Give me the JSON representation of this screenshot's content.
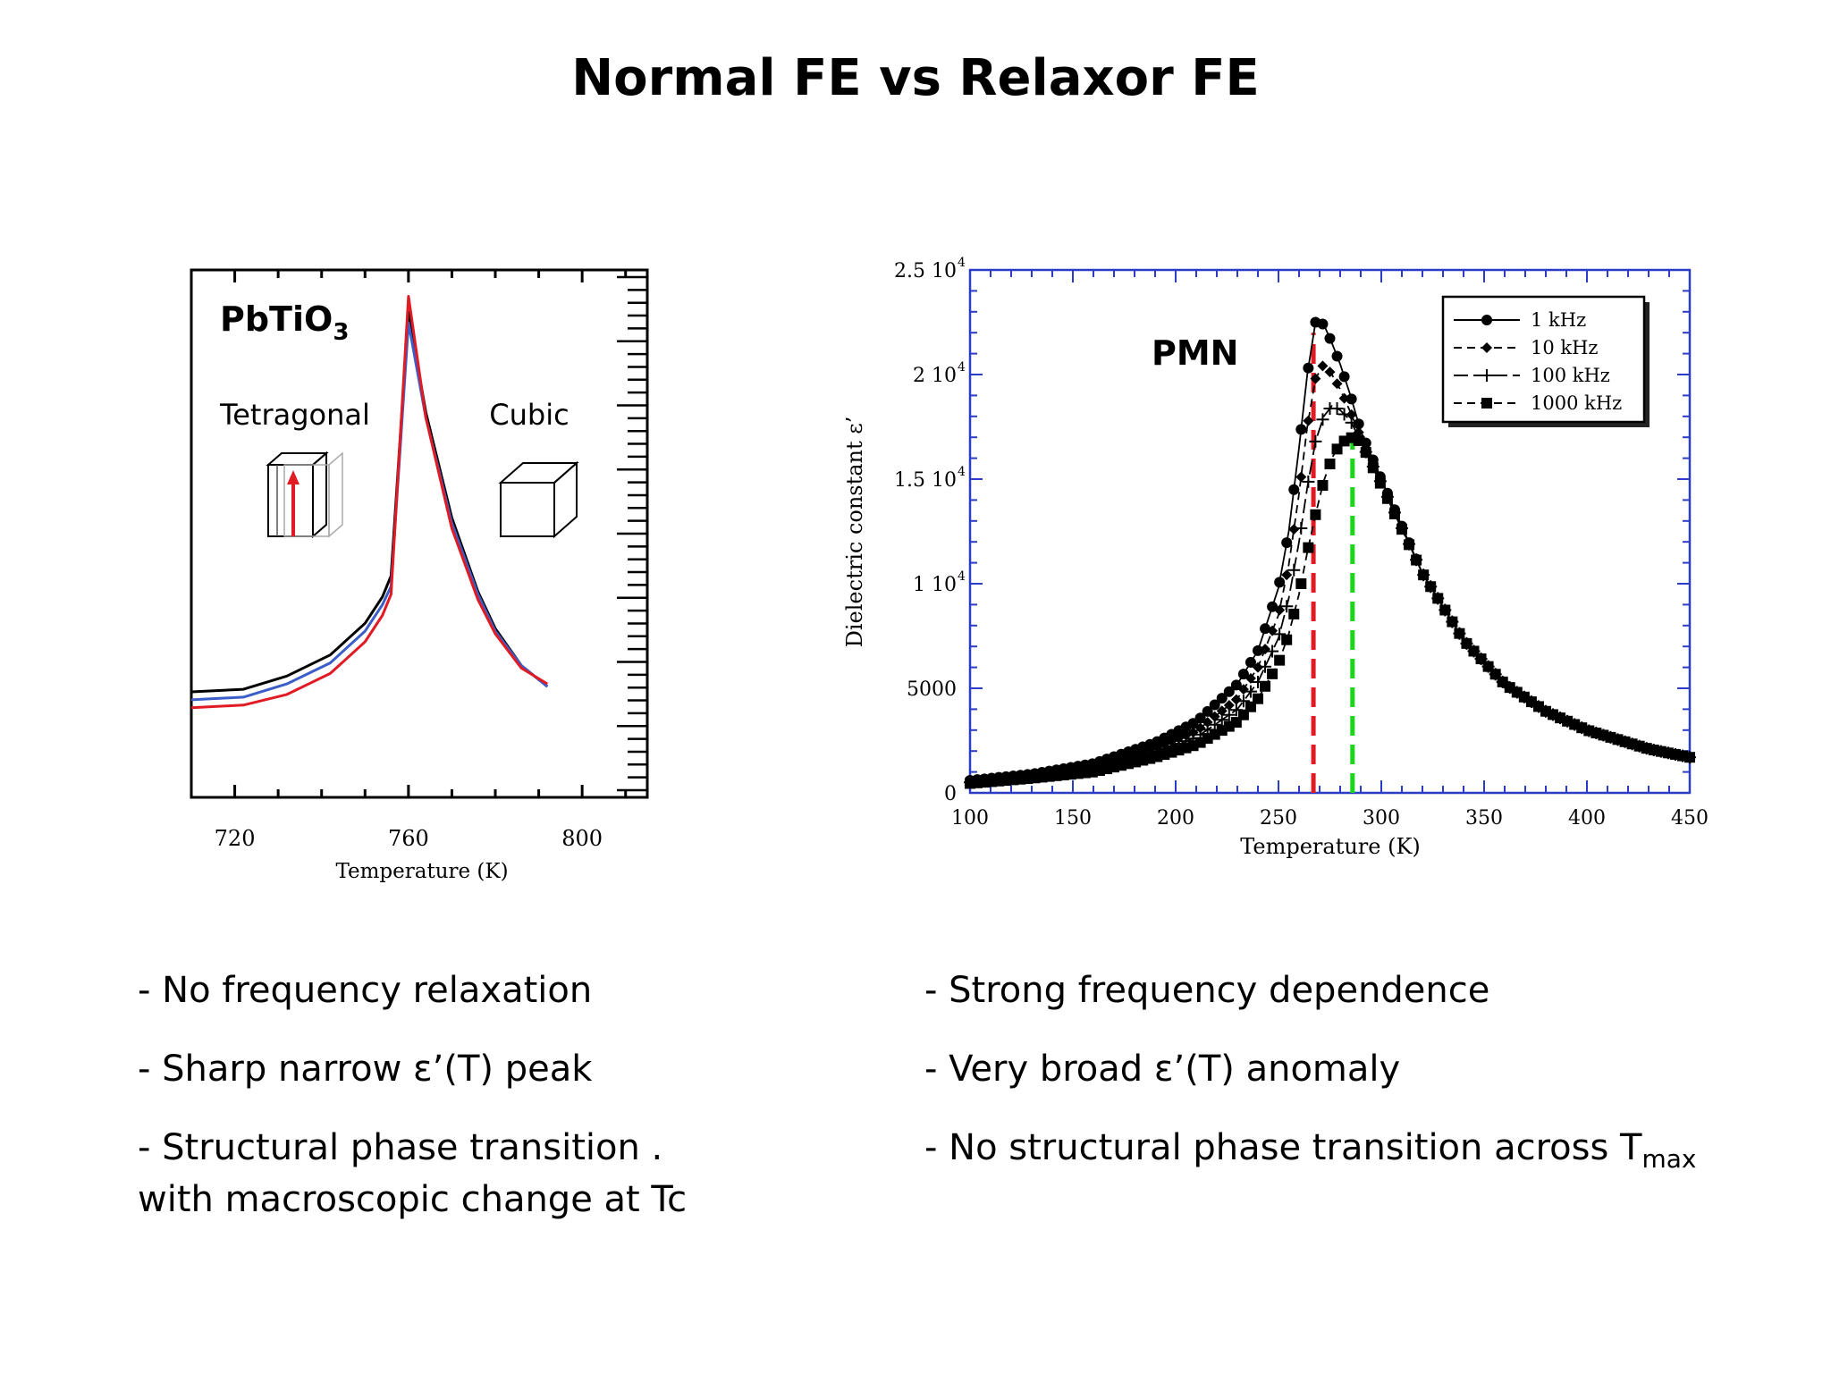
{
  "title": "Normal FE vs Relaxor FE",
  "bullets_left": [
    "- No frequency relaxation",
    "- Sharp narrow ε’(T) peak",
    "- Structural phase transition .",
    "with macroscopic change at Tc"
  ],
  "bullets_right": [
    "- Strong frequency dependence",
    "- Very broad ε’(T) anomaly",
    "- No structural phase transition across T",
    "max"
  ],
  "chart_data": [
    {
      "type": "line",
      "title": "PbTiO",
      "title_subscript": "3",
      "xlabel": "Temperature (K)",
      "ylabel": "",
      "xlim": [
        710,
        815
      ],
      "ylim": [
        0,
        1
      ],
      "x_ticks": [
        720,
        760,
        800
      ],
      "annotations": [
        "Tetragonal",
        "Cubic"
      ],
      "grid": false,
      "series": [
        {
          "name": "black",
          "color": "#000000",
          "x": [
            710,
            722,
            732,
            742,
            750,
            754,
            756,
            760,
            764,
            770,
            776,
            780,
            786,
            792
          ],
          "y": [
            0.2,
            0.205,
            0.23,
            0.27,
            0.33,
            0.38,
            0.42,
            0.92,
            0.73,
            0.53,
            0.39,
            0.32,
            0.25,
            0.21
          ]
        },
        {
          "name": "blue",
          "color": "#3b5ec9",
          "x": [
            710,
            722,
            732,
            742,
            750,
            754,
            756,
            760,
            764,
            770,
            776,
            780,
            786,
            792
          ],
          "y": [
            0.185,
            0.19,
            0.215,
            0.255,
            0.315,
            0.365,
            0.4,
            0.9,
            0.72,
            0.52,
            0.385,
            0.315,
            0.25,
            0.21
          ]
        },
        {
          "name": "red",
          "color": "#e01b24",
          "x": [
            710,
            722,
            732,
            742,
            750,
            754,
            756,
            760,
            764,
            770,
            776,
            780,
            786,
            792
          ],
          "y": [
            0.17,
            0.175,
            0.195,
            0.235,
            0.295,
            0.345,
            0.385,
            0.95,
            0.72,
            0.51,
            0.375,
            0.31,
            0.245,
            0.215
          ]
        }
      ]
    },
    {
      "type": "line",
      "title": "PMN",
      "xlabel": "Temperature (K)",
      "ylabel": "Dielectric constant ε’",
      "xlim": [
        100,
        450
      ],
      "ylim": [
        0,
        25000
      ],
      "x_ticks": [
        100,
        150,
        200,
        250,
        300,
        350,
        400,
        450
      ],
      "y_ticks": [
        0,
        5000,
        10000,
        15000,
        20000,
        25000
      ],
      "y_tick_labels": [
        "0",
        "5000",
        "1 10",
        "1.5 10",
        "2 10",
        "2.5 10"
      ],
      "y_tick_exponent": "4",
      "legend_position": "top-right",
      "grid": false,
      "vertical_markers": [
        {
          "x": 267,
          "color": "#e01b24"
        },
        {
          "x": 286,
          "color": "#1bd61b"
        }
      ],
      "series": [
        {
          "name": "1 kHz",
          "marker": "circle",
          "dash": "solid",
          "x": [
            100,
            130,
            160,
            190,
            210,
            230,
            240,
            250,
            255,
            260,
            264,
            268,
            272,
            276,
            280,
            285,
            290,
            300,
            320,
            340,
            360,
            380,
            400,
            430,
            450
          ],
          "y": [
            600,
            900,
            1400,
            2400,
            3400,
            5200,
            6800,
            9800,
            12500,
            16500,
            20000,
            22500,
            22400,
            21500,
            20500,
            19000,
            17300,
            15000,
            10500,
            7300,
            5200,
            3900,
            3000,
            2100,
            1700
          ]
        },
        {
          "name": "10 kHz",
          "marker": "diamond",
          "dash": "dashed",
          "x": [
            100,
            130,
            160,
            190,
            210,
            230,
            240,
            250,
            255,
            260,
            264,
            268,
            272,
            276,
            280,
            285,
            290,
            300,
            320,
            340,
            360,
            380,
            400,
            430,
            450
          ],
          "y": [
            550,
            850,
            1250,
            2150,
            2950,
            4500,
            6000,
            8500,
            10900,
            14300,
            17500,
            19800,
            20500,
            20000,
            19300,
            18200,
            17000,
            14900,
            10500,
            7300,
            5200,
            3900,
            3000,
            2100,
            1700
          ]
        },
        {
          "name": "100 kHz",
          "marker": "plus",
          "dash": "long-dash",
          "x": [
            100,
            130,
            160,
            190,
            210,
            230,
            240,
            250,
            255,
            260,
            264,
            268,
            272,
            276,
            280,
            285,
            290,
            300,
            320,
            340,
            360,
            380,
            400,
            430,
            450
          ],
          "y": [
            500,
            780,
            1150,
            1950,
            2650,
            4000,
            5300,
            7400,
            9300,
            12000,
            14600,
            16800,
            18000,
            18500,
            18300,
            17800,
            16800,
            14800,
            10500,
            7300,
            5200,
            3900,
            3000,
            2100,
            1700
          ]
        },
        {
          "name": "1000 kHz",
          "marker": "square",
          "dash": "dashed",
          "x": [
            100,
            130,
            160,
            190,
            210,
            230,
            240,
            250,
            255,
            260,
            264,
            268,
            272,
            276,
            280,
            285,
            290,
            300,
            320,
            340,
            360,
            380,
            400,
            430,
            450
          ],
          "y": [
            450,
            700,
            1000,
            1700,
            2300,
            3400,
            4500,
            6200,
            7600,
            9500,
            11500,
            13300,
            14900,
            16000,
            16700,
            17000,
            16800,
            14700,
            10500,
            7300,
            5200,
            3900,
            3000,
            2100,
            1700
          ]
        }
      ]
    }
  ]
}
